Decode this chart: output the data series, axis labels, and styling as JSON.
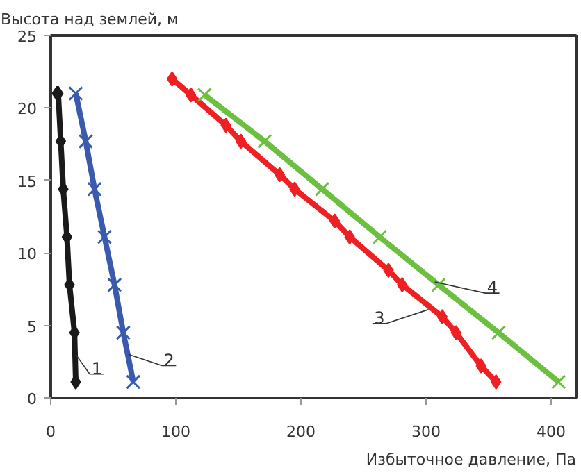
{
  "chart_data": {
    "type": "line",
    "xlabel": "Избыточное давление, Па",
    "ylabel": "Высота над землей, м",
    "xlim": [
      0,
      420
    ],
    "ylim": [
      0,
      25
    ],
    "xticks": [
      0,
      100,
      200,
      300,
      400
    ],
    "yticks": [
      0,
      5,
      10,
      15,
      20,
      25
    ],
    "grid": false,
    "line_style": "solid",
    "series": [
      {
        "color": "#1a1a1a",
        "marker": "diamond",
        "x": [
          20,
          19,
          15,
          13,
          10,
          8,
          6,
          5
        ],
        "values": [
          1.1,
          4.5,
          7.8,
          11.1,
          14.4,
          17.7,
          21,
          21
        ]
      },
      {
        "color": "#3a5bad",
        "marker": "cross",
        "x": [
          66,
          58,
          51,
          43,
          35,
          28,
          20
        ],
        "values": [
          1.1,
          4.5,
          7.8,
          11.1,
          14.4,
          17.7,
          21
        ]
      },
      {
        "color": "#ee2024",
        "marker": "diamond",
        "x": [
          356,
          344,
          324,
          313,
          281,
          270,
          239,
          227,
          195,
          183,
          152,
          140,
          112,
          97
        ],
        "values": [
          1.1,
          2.2,
          4.5,
          5.6,
          7.8,
          8.8,
          11.1,
          12.2,
          14.4,
          15.4,
          17.7,
          18.8,
          20.9,
          22
        ]
      },
      {
        "color": "#6dbf3f",
        "marker": "cross",
        "x": [
          406,
          358,
          310,
          263,
          217,
          171,
          123
        ],
        "values": [
          1.1,
          4.5,
          7.8,
          11.1,
          14.4,
          17.7,
          20.9
        ]
      }
    ],
    "annotations": [
      {
        "text": "1",
        "x": 20,
        "y": 3
      },
      {
        "text": "2",
        "x": 62,
        "y": 3
      },
      {
        "text": "3",
        "x": 302,
        "y": 6.1
      },
      {
        "text": "4",
        "x": 307,
        "y": 8
      }
    ]
  }
}
